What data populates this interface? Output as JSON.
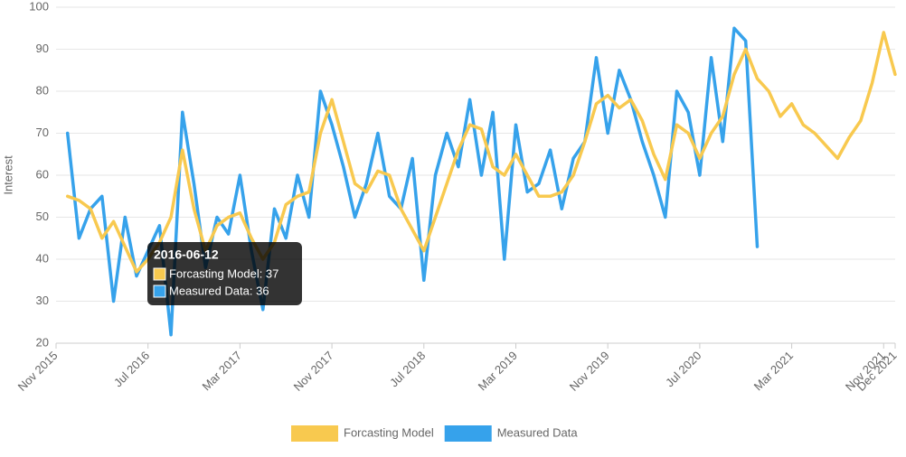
{
  "chart_data": {
    "type": "line",
    "y_label": "Interest",
    "x": [
      "2015-12",
      "2016-01",
      "2016-02",
      "2016-03",
      "2016-04",
      "2016-05",
      "2016-06",
      "2016-07",
      "2016-08",
      "2016-09",
      "2016-10",
      "2016-11",
      "2016-12",
      "2017-01",
      "2017-02",
      "2017-03",
      "2017-04",
      "2017-05",
      "2017-06",
      "2017-07",
      "2017-08",
      "2017-09",
      "2017-10",
      "2017-11",
      "2017-12",
      "2018-01",
      "2018-02",
      "2018-03",
      "2018-04",
      "2018-05",
      "2018-06",
      "2018-07",
      "2018-08",
      "2018-09",
      "2018-10",
      "2018-11",
      "2018-12",
      "2019-01",
      "2019-02",
      "2019-03",
      "2019-04",
      "2019-05",
      "2019-06",
      "2019-07",
      "2019-08",
      "2019-09",
      "2019-10",
      "2019-11",
      "2019-12",
      "2020-01",
      "2020-02",
      "2020-03",
      "2020-04",
      "2020-05",
      "2020-06",
      "2020-07",
      "2020-08",
      "2020-09",
      "2020-10",
      "2020-11",
      "2020-12",
      "2021-01",
      "2021-02",
      "2021-03",
      "2021-04",
      "2021-05",
      "2021-06",
      "2021-07",
      "2021-08",
      "2021-09",
      "2021-10",
      "2021-11",
      "2021-12"
    ],
    "series": [
      {
        "name": "Forcasting Model",
        "color": "#f8c94f",
        "values": [
          55,
          54,
          52,
          45,
          49,
          43,
          37,
          40,
          44,
          50,
          66,
          52,
          42,
          48,
          50,
          51,
          45,
          40,
          44,
          53,
          55,
          56,
          70,
          78,
          68,
          58,
          56,
          61,
          60,
          52,
          47,
          42,
          50,
          58,
          66,
          72,
          71,
          62,
          60,
          65,
          60,
          55,
          55,
          56,
          60,
          68,
          77,
          79,
          76,
          78,
          73,
          65,
          59,
          72,
          70,
          64,
          70,
          74,
          84,
          90,
          83,
          80,
          74,
          77,
          72,
          70,
          67,
          64,
          69,
          73,
          82,
          94,
          84
        ]
      },
      {
        "name": "Measured Data",
        "color": "#36a2eb",
        "values": [
          70,
          45,
          52,
          55,
          30,
          50,
          36,
          42,
          48,
          22,
          75,
          58,
          38,
          50,
          46,
          60,
          42,
          28,
          52,
          45,
          60,
          50,
          80,
          72,
          62,
          50,
          58,
          70,
          55,
          52,
          64,
          35,
          60,
          70,
          62,
          78,
          60,
          75,
          40,
          72,
          56,
          58,
          66,
          52,
          64,
          68,
          88,
          70,
          85,
          78,
          68,
          60,
          50,
          80,
          75,
          60,
          88,
          68,
          95,
          92,
          43,
          null,
          null,
          null,
          null,
          null,
          null,
          null,
          null,
          null,
          null,
          null,
          null
        ]
      }
    ],
    "xlim": [
      "2015-11",
      "2021-12"
    ],
    "xticks": [
      {
        "value": "2015-11",
        "label": "Nov 2015"
      },
      {
        "value": "2016-07",
        "label": "Jul 2016"
      },
      {
        "value": "2017-03",
        "label": "Mar 2017"
      },
      {
        "value": "2017-11",
        "label": "Nov 2017"
      },
      {
        "value": "2018-07",
        "label": "Jul 2018"
      },
      {
        "value": "2019-03",
        "label": "Mar 2019"
      },
      {
        "value": "2019-11",
        "label": "Nov 2019"
      },
      {
        "value": "2020-07",
        "label": "Jul 2020"
      },
      {
        "value": "2021-03",
        "label": "Mar 2021"
      },
      {
        "value": "2021-11",
        "label": "Nov 2021"
      },
      {
        "value": "2021-12",
        "label": "Dec 2021"
      }
    ],
    "ylim": [
      20,
      100
    ],
    "yticks": [
      20,
      30,
      40,
      50,
      60,
      70,
      80,
      90,
      100
    ],
    "grid": true,
    "legend": "bottom"
  },
  "tooltip": {
    "title": "2016-06-12",
    "items": [
      "Forcasting Model: 37",
      "Measured Data: 36"
    ]
  }
}
